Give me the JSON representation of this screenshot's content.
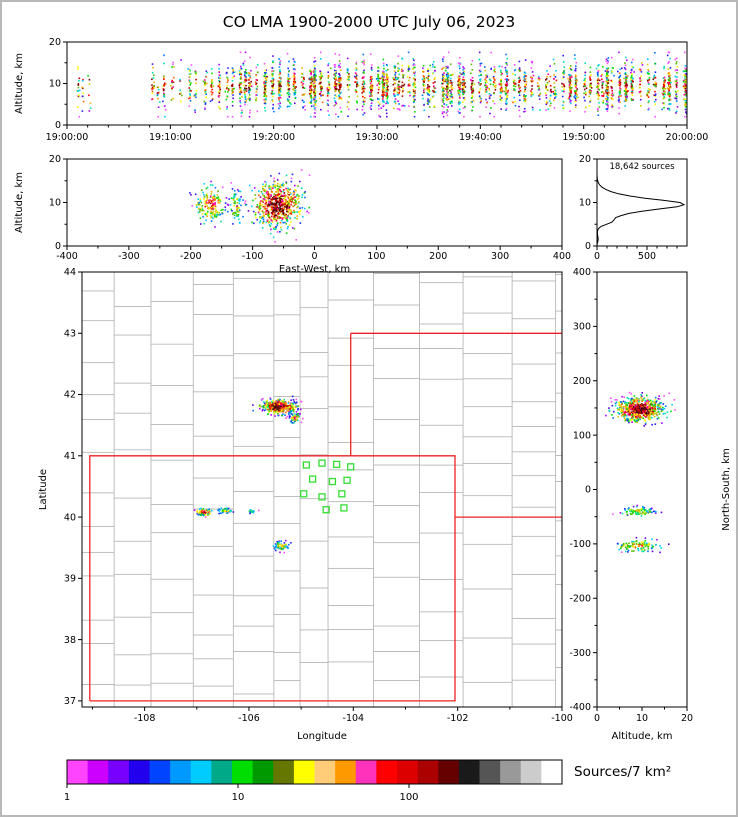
{
  "title": "CO LMA 1900-2000 UTC July 06, 2023",
  "hist_annotation": "18,642 sources",
  "colorbar": {
    "label": "Sources/7 km²",
    "tick_labels": [
      "1",
      "10",
      "100"
    ],
    "tick_values": [
      1,
      10,
      100
    ],
    "colors": [
      "#ff44ff",
      "#cc00ff",
      "#7700ff",
      "#2200ee",
      "#0044ff",
      "#0099ff",
      "#00ccff",
      "#00aa88",
      "#00dd00",
      "#009900",
      "#667700",
      "#ffff00",
      "#ffcc77",
      "#ff9900",
      "#ff33bb",
      "#ff0000",
      "#dd0000",
      "#aa0000",
      "#660000",
      "#1a1a1a",
      "#555555",
      "#999999",
      "#cccccc",
      "#ffffff"
    ]
  },
  "point_palette": [
    "#ff50ff",
    "#b000ff",
    "#6000e0",
    "#2020ff",
    "#0070ff",
    "#00c8ff",
    "#00e0b0",
    "#00dd00",
    "#55bb00",
    "#cccc00",
    "#ffff00",
    "#ffb000",
    "#ff6000",
    "#ff00aa",
    "#ff0000",
    "#c00000",
    "#800000",
    "#400000"
  ],
  "chart_data": [
    {
      "id": "time_height",
      "type": "scatter",
      "ylabel": "Altitude, km",
      "xlim": [
        0,
        60
      ],
      "ylim": [
        0,
        20
      ],
      "xtick_values": [
        0,
        10,
        20,
        30,
        40,
        50,
        60
      ],
      "xtick_labels": [
        "19:00:00",
        "19:10:00",
        "19:20:00",
        "19:30:00",
        "19:40:00",
        "19:50:00",
        "20:00:00"
      ],
      "ytick_values": [
        0,
        10,
        20
      ],
      "alt_center": 9.4,
      "alt_spread": 2.9,
      "sparse_bursts": [
        [
          1.1,
          16
        ],
        [
          1.5,
          9
        ],
        [
          2.2,
          7
        ],
        [
          8.3,
          20
        ],
        [
          8.8,
          12
        ],
        [
          9.4,
          24
        ],
        [
          10.2,
          15
        ],
        [
          11.0,
          8
        ],
        [
          11.9,
          28
        ],
        [
          12.4,
          14
        ]
      ],
      "dense_bursts": {
        "t0": 13.4,
        "t1": 59.9,
        "step": 0.62,
        "nmin": 16,
        "nmax": 70
      }
    },
    {
      "id": "east_west_height",
      "type": "scatter",
      "xlabel": "East-West, km",
      "ylabel": "Altitude, km",
      "xlim": [
        -400,
        400
      ],
      "ylim": [
        0,
        20
      ],
      "xtick_values": [
        -400,
        -300,
        -200,
        -100,
        0,
        100,
        200,
        300,
        400
      ],
      "ytick_values": [
        0,
        10,
        20
      ],
      "clusters": [
        {
          "cx": -168,
          "sx": 13,
          "n": 170,
          "hot": 0.75,
          "alt_c": 9.5,
          "alt_s": 2.2
        },
        {
          "cx": -127,
          "sx": 5,
          "n": 70,
          "hot": 0.6,
          "alt_c": 9.0,
          "alt_s": 2.0
        },
        {
          "cx": -60,
          "sx": 20,
          "n": 620,
          "hot": 1.0,
          "alt_c": 9.5,
          "alt_s": 2.6
        }
      ]
    },
    {
      "id": "altitude_histogram",
      "type": "line",
      "annotation": "18,642 sources",
      "xlim": [
        0,
        900
      ],
      "ylim": [
        0,
        20
      ],
      "xtick_values": [
        0,
        500
      ],
      "ytick_values": [
        0,
        10,
        20
      ],
      "bins": [
        [
          0,
          0
        ],
        [
          0.5,
          2
        ],
        [
          1,
          8
        ],
        [
          1.5,
          12
        ],
        [
          2,
          10
        ],
        [
          2.5,
          6
        ],
        [
          3,
          4
        ],
        [
          3.5,
          6
        ],
        [
          4,
          15
        ],
        [
          4.5,
          40
        ],
        [
          5,
          95
        ],
        [
          5.5,
          150
        ],
        [
          6,
          170
        ],
        [
          6.5,
          185
        ],
        [
          7,
          240
        ],
        [
          7.5,
          320
        ],
        [
          8,
          450
        ],
        [
          8.5,
          620
        ],
        [
          9,
          800
        ],
        [
          9.5,
          870
        ],
        [
          10,
          830
        ],
        [
          10.5,
          660
        ],
        [
          11,
          480
        ],
        [
          11.5,
          330
        ],
        [
          12,
          215
        ],
        [
          12.5,
          140
        ],
        [
          13,
          88
        ],
        [
          13.5,
          52
        ],
        [
          14,
          28
        ],
        [
          14.5,
          14
        ],
        [
          15,
          7
        ],
        [
          15.5,
          3
        ],
        [
          16,
          1
        ],
        [
          17,
          0
        ],
        [
          20,
          0
        ]
      ]
    },
    {
      "id": "map",
      "type": "scatter",
      "xlabel": "Longitude",
      "ylabel": "Latitude",
      "xlim": [
        -109.2,
        -100
      ],
      "ylim": [
        36.9,
        44
      ],
      "xtick_values": [
        -108,
        -106,
        -104,
        -102,
        -100
      ],
      "ytick_values": [
        37,
        38,
        39,
        40,
        41,
        42,
        43,
        44
      ],
      "state_borders": [
        [
          [
            -109.05,
            37
          ],
          [
            -102.05,
            37
          ],
          [
            -102.05,
            41
          ],
          [
            -109.05,
            41
          ],
          [
            -109.05,
            37
          ]
        ],
        [
          [
            -104.05,
            41
          ],
          [
            -104.05,
            43
          ]
        ],
        [
          [
            -104.05,
            43
          ],
          [
            -100,
            43
          ]
        ],
        [
          [
            -102.05,
            40
          ],
          [
            -100,
            40
          ]
        ]
      ],
      "stations": [
        [
          -104.9,
          40.85
        ],
        [
          -104.6,
          40.88
        ],
        [
          -104.32,
          40.86
        ],
        [
          -104.05,
          40.82
        ],
        [
          -104.78,
          40.62
        ],
        [
          -104.4,
          40.58
        ],
        [
          -104.12,
          40.6
        ],
        [
          -104.95,
          40.38
        ],
        [
          -104.6,
          40.33
        ],
        [
          -104.22,
          40.38
        ],
        [
          -104.52,
          40.12
        ],
        [
          -104.18,
          40.15
        ]
      ],
      "clusters": [
        {
          "lon": -105.42,
          "lat": 41.8,
          "sx": 0.17,
          "sy": 0.06,
          "n": 420,
          "hot": 1.0
        },
        {
          "lon": -105.12,
          "lat": 41.62,
          "sx": 0.06,
          "sy": 0.04,
          "n": 60,
          "hot": 0.7
        },
        {
          "lon": -106.85,
          "lat": 40.08,
          "sx": 0.1,
          "sy": 0.03,
          "n": 70,
          "hot": 0.8
        },
        {
          "lon": -106.45,
          "lat": 40.1,
          "sx": 0.06,
          "sy": 0.025,
          "n": 40,
          "hot": 0.6
        },
        {
          "lon": -105.95,
          "lat": 40.1,
          "sx": 0.05,
          "sy": 0.02,
          "n": 18,
          "hot": 0.45
        },
        {
          "lon": -105.38,
          "lat": 39.53,
          "sx": 0.08,
          "sy": 0.035,
          "n": 55,
          "hot": 0.6
        }
      ]
    },
    {
      "id": "north_south_height",
      "type": "scatter",
      "xlabel": "Altitude, km",
      "ylabel": "North-South, km",
      "xlim": [
        0,
        20
      ],
      "ylim": [
        -400,
        400
      ],
      "xtick_values": [
        0,
        10,
        20
      ],
      "ytick_values": [
        -400,
        -300,
        -200,
        -100,
        0,
        100,
        200,
        300,
        400
      ],
      "clusters": [
        {
          "cy": 147,
          "sy": 11,
          "n": 620,
          "hot": 1.0,
          "alt_c": 9.5,
          "alt_s": 2.6
        },
        {
          "cy": -40,
          "sy": 5,
          "n": 90,
          "hot": 0.6,
          "alt_c": 9.0,
          "alt_s": 2.0
        },
        {
          "cy": -103,
          "sy": 6,
          "n": 110,
          "hot": 0.7,
          "alt_c": 9.0,
          "alt_s": 2.2
        }
      ]
    }
  ]
}
